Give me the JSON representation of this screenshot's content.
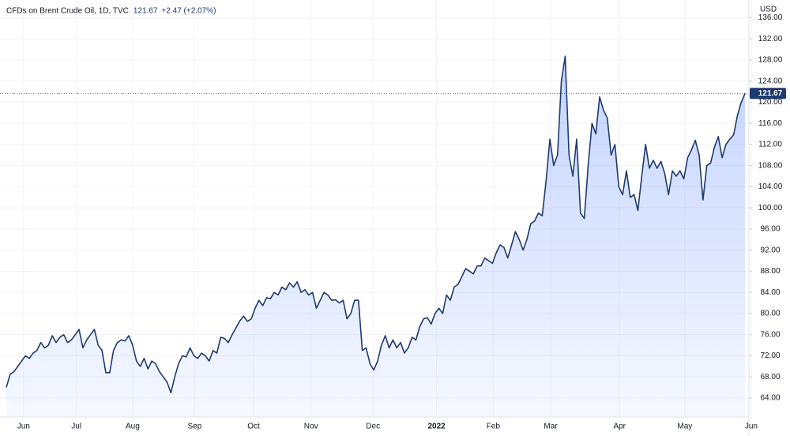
{
  "chart_data": {
    "type": "area",
    "title": "CFDs on Brent Crude Oil, 1D, TVC",
    "change": "+2.47 (+2.07%)",
    "unit": "USD",
    "color": "#1e3a6e",
    "fill": "#2962ff",
    "grid": true,
    "values": [
      66,
      68.5,
      69,
      70,
      71,
      72,
      71.5,
      72.5,
      73,
      74.5,
      73.5,
      74,
      75.8,
      74.5,
      75.5,
      76,
      74.5,
      75,
      76,
      77,
      73.5,
      75,
      76,
      77,
      74,
      73,
      68.8,
      68.8,
      73,
      74.5,
      75,
      74.8,
      75.8,
      74,
      71,
      70,
      71.5,
      69.5,
      71,
      70.5,
      69,
      68,
      67,
      65,
      68,
      70.5,
      72,
      71.8,
      73.5,
      72,
      71.5,
      72.5,
      72,
      71,
      73,
      72.5,
      75.5,
      75.3,
      74.5,
      76,
      77.3,
      78.6,
      79.5,
      78.5,
      79,
      81,
      82.5,
      81.5,
      83,
      82.8,
      84,
      83.5,
      85,
      84.5,
      85.8,
      85,
      86,
      84,
      84.5,
      83.5,
      84,
      81,
      82.5,
      84,
      83.5,
      82.5,
      82.6,
      82,
      82.5,
      79,
      80,
      82.5,
      82.5,
      73,
      73.5,
      70.5,
      69.3,
      71,
      74,
      75.8,
      73.5,
      75,
      73.5,
      74.5,
      72.5,
      73.5,
      75.5,
      75,
      77.5,
      79,
      79.2,
      78,
      80,
      81,
      80,
      83.5,
      82.5,
      85,
      85.5,
      87,
      88.5,
      88,
      87.5,
      89,
      89,
      90.5,
      90,
      89.5,
      91.5,
      93,
      92.5,
      90.5,
      93,
      95.5,
      94,
      92,
      94,
      97,
      97.5,
      99,
      98.5,
      105,
      113,
      108,
      110,
      124,
      128.7,
      110,
      106,
      113,
      99,
      98,
      108,
      116,
      114,
      121,
      118.5,
      117,
      110,
      112,
      104,
      102.5,
      107,
      102,
      102.5,
      99.5,
      106,
      112,
      107.5,
      109,
      107.5,
      108.8,
      106.5,
      102.5,
      107,
      106,
      107,
      105.5,
      109.5,
      111,
      112.8,
      110,
      101.5,
      108,
      108.5,
      111.5,
      113.5,
      109.5,
      112,
      113,
      113.8,
      117.5,
      120,
      121.67
    ],
    "xlim": [
      0,
      194
    ],
    "xticks": [
      {
        "value": 4.5,
        "label": "Jun"
      },
      {
        "value": 18.3,
        "label": "Jul"
      },
      {
        "value": 33,
        "label": "Aug"
      },
      {
        "value": 49.2,
        "label": "Sep"
      },
      {
        "value": 64.6,
        "label": "Oct"
      },
      {
        "value": 79.6,
        "label": "Nov"
      },
      {
        "value": 95.8,
        "label": "Dec"
      },
      {
        "value": 112.4,
        "label": "2022"
      },
      {
        "value": 127.2,
        "label": "Feb"
      },
      {
        "value": 142.2,
        "label": "Mar"
      },
      {
        "value": 160.2,
        "label": "Apr"
      },
      {
        "value": 177.25,
        "label": "May"
      },
      {
        "value": 194.6,
        "label": "Jun"
      }
    ],
    "ylim": [
      60.4,
      138.6
    ],
    "yticks": [
      {
        "value": 64,
        "label": "64.00"
      },
      {
        "value": 68,
        "label": "68.00"
      },
      {
        "value": 72,
        "label": "72.00"
      },
      {
        "value": 76,
        "label": "76.00"
      },
      {
        "value": 80,
        "label": "80.00"
      },
      {
        "value": 84,
        "label": "84.00"
      },
      {
        "value": 88,
        "label": "88.00"
      },
      {
        "value": 92,
        "label": "92.00"
      },
      {
        "value": 96,
        "label": "96.00"
      },
      {
        "value": 100,
        "label": "100.00"
      },
      {
        "value": 104,
        "label": "104.00"
      },
      {
        "value": 108,
        "label": "108.00"
      },
      {
        "value": 112,
        "label": "112.00"
      },
      {
        "value": 116,
        "label": "116.00"
      },
      {
        "value": 120,
        "label": "120.00"
      },
      {
        "value": 124,
        "label": "124.00"
      },
      {
        "value": 128,
        "label": "128.00"
      },
      {
        "value": 132,
        "label": "132.00"
      },
      {
        "value": 136,
        "label": "136.00"
      }
    ]
  }
}
